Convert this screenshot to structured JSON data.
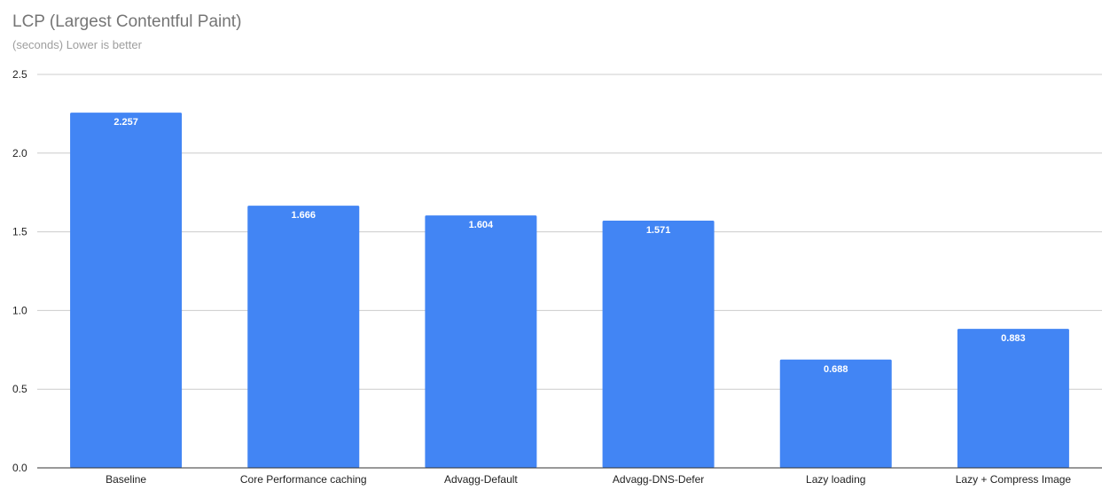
{
  "chart_data": {
    "type": "bar",
    "title": "LCP (Largest Contentful Paint)",
    "subtitle": "(seconds) Lower is better",
    "xlabel": "",
    "ylabel": "",
    "categories": [
      "Baseline",
      "Core Performance caching",
      "Advagg-Default",
      "Advagg-DNS-Defer",
      "Lazy loading",
      "Lazy + Compress Image"
    ],
    "values": [
      2.257,
      1.666,
      1.604,
      1.571,
      0.688,
      0.883
    ],
    "value_labels": [
      "2.257",
      "1.666",
      "1.604",
      "1.571",
      "0.688",
      "0.883"
    ],
    "ylim": [
      0,
      2.5
    ],
    "yticks": [
      0,
      0.5,
      1,
      1.5,
      2,
      2.5
    ],
    "ytick_labels": [
      "0.0",
      "0.5",
      "1.0",
      "1.5",
      "2.0",
      "2.5"
    ],
    "grid": true,
    "legend": "none",
    "bar_color": "#4285f4"
  }
}
